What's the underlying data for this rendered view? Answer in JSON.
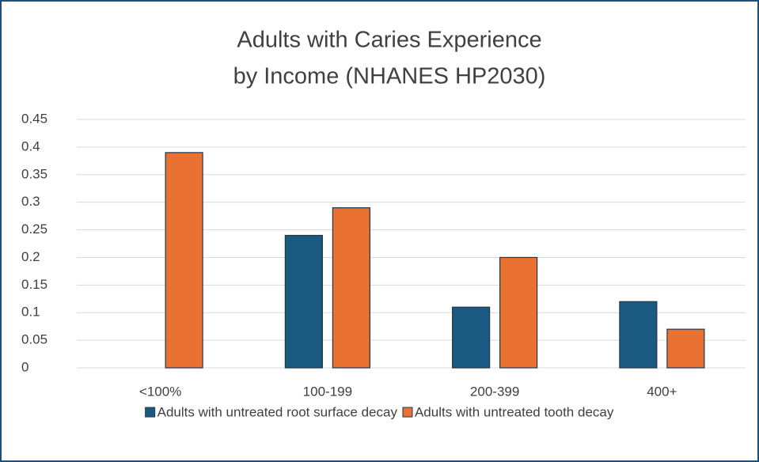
{
  "chart_data": {
    "type": "bar",
    "title": [
      "Adults with Caries Experience",
      "by Income (NHANES HP2030)"
    ],
    "categories": [
      "<100%",
      "100-199",
      "200-399",
      "400+"
    ],
    "series": [
      {
        "name": "Adults with untreated root surface decay",
        "color": "#1a5a80",
        "values": [
          null,
          0.24,
          0.11,
          0.12
        ]
      },
      {
        "name": "Adults with untreated tooth decay",
        "color": "#e97132",
        "values": [
          0.39,
          0.29,
          0.2,
          0.07
        ]
      }
    ],
    "ylim": [
      0,
      0.45
    ],
    "yticks": [
      0,
      0.05,
      0.1,
      0.15,
      0.2,
      0.25,
      0.3,
      0.35,
      0.4,
      0.45
    ],
    "grid": true,
    "legend": "bottom"
  }
}
